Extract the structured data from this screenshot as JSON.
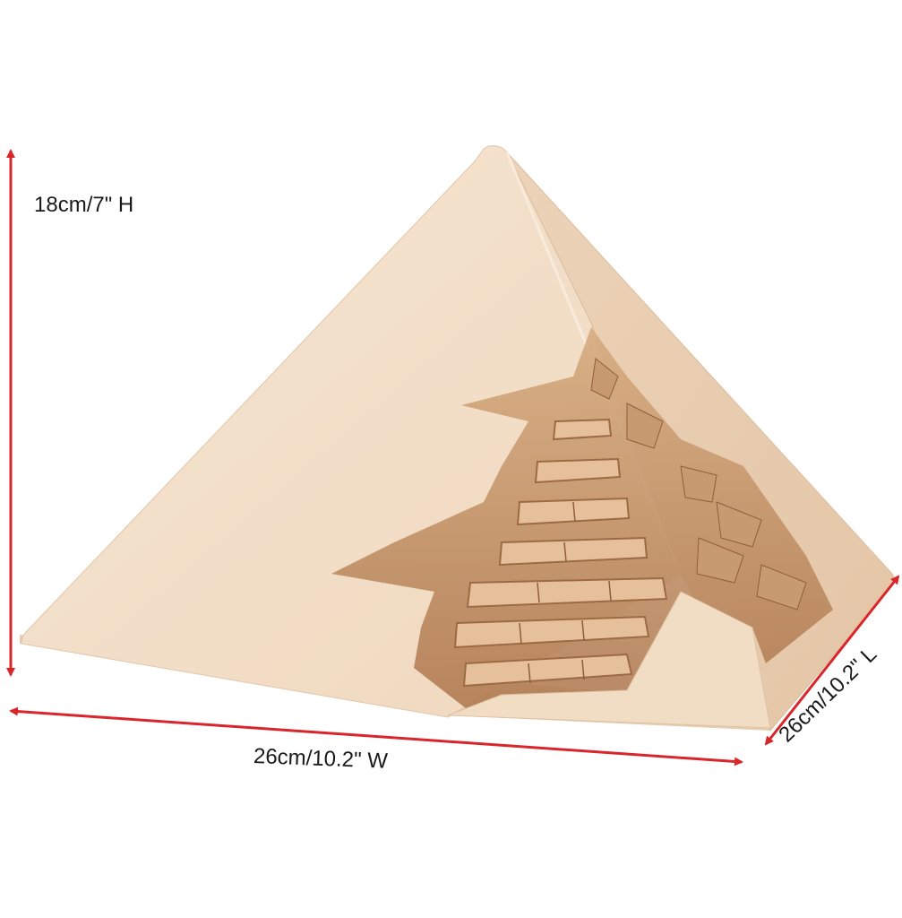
{
  "product": {
    "subject": "pyramid-figurine"
  },
  "dimensions": {
    "height_label": "18cm/7\" H",
    "width_label": "26cm/10.2\" W",
    "length_label": "26cm/10.2\" L"
  },
  "colors": {
    "arrow": "#d9262b",
    "pyramid_face_light": "#f4dfc8",
    "pyramid_face_shadow": "#e9cdb0",
    "carved_detail": "#b8865f",
    "background": "#ffffff"
  },
  "icons": {
    "arrow": "double-headed-arrow"
  }
}
